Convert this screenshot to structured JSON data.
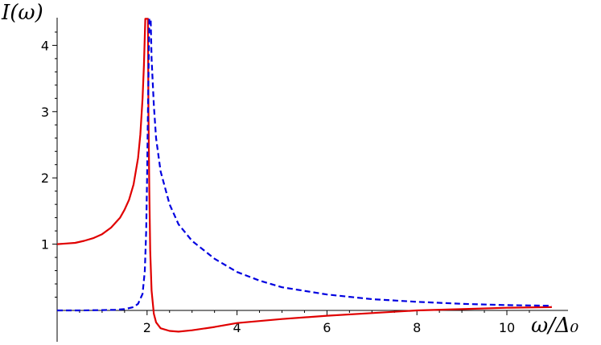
{
  "chart_data": {
    "type": "line",
    "ylabel": "I(ω)",
    "xlabel": "ω/Δ₀",
    "xlim": [
      0,
      11
    ],
    "ylim": [
      -0.5,
      4.4
    ],
    "grid": false,
    "legend": "none",
    "x_ticks": [
      2,
      4,
      6,
      8,
      10
    ],
    "y_ticks": [
      1,
      2,
      3,
      4
    ],
    "series": [
      {
        "style": "solid",
        "color": "#e00000",
        "points": [
          [
            0.0,
            1.0
          ],
          [
            0.2,
            1.01
          ],
          [
            0.4,
            1.02
          ],
          [
            0.6,
            1.05
          ],
          [
            0.8,
            1.09
          ],
          [
            1.0,
            1.15
          ],
          [
            1.2,
            1.25
          ],
          [
            1.4,
            1.4
          ],
          [
            1.5,
            1.52
          ],
          [
            1.6,
            1.67
          ],
          [
            1.7,
            1.9
          ],
          [
            1.8,
            2.3
          ],
          [
            1.85,
            2.65
          ],
          [
            1.9,
            3.2
          ],
          [
            1.93,
            3.7
          ],
          [
            1.96,
            4.4
          ],
          [
            2.02,
            4.4
          ],
          [
            2.03,
            3.0
          ],
          [
            2.05,
            1.8
          ],
          [
            2.07,
            0.9
          ],
          [
            2.1,
            0.3
          ],
          [
            2.15,
            -0.05
          ],
          [
            2.2,
            -0.18
          ],
          [
            2.3,
            -0.27
          ],
          [
            2.5,
            -0.31
          ],
          [
            2.7,
            -0.32
          ],
          [
            3.0,
            -0.3
          ],
          [
            3.5,
            -0.25
          ],
          [
            4.0,
            -0.19
          ],
          [
            5.0,
            -0.13
          ],
          [
            6.0,
            -0.08
          ],
          [
            7.0,
            -0.04
          ],
          [
            8.0,
            0.0
          ],
          [
            9.0,
            0.02
          ],
          [
            10.0,
            0.04
          ],
          [
            11.0,
            0.05
          ]
        ]
      },
      {
        "style": "dashed",
        "color": "#0000e0",
        "points": [
          [
            0.0,
            0.0
          ],
          [
            0.5,
            0.0
          ],
          [
            1.0,
            0.005
          ],
          [
            1.3,
            0.01
          ],
          [
            1.5,
            0.02
          ],
          [
            1.7,
            0.05
          ],
          [
            1.8,
            0.1
          ],
          [
            1.9,
            0.25
          ],
          [
            1.95,
            0.6
          ],
          [
            1.98,
            1.2
          ],
          [
            2.0,
            2.0
          ],
          [
            2.02,
            3.0
          ],
          [
            2.05,
            4.4
          ],
          [
            2.08,
            4.4
          ],
          [
            2.1,
            3.8
          ],
          [
            2.15,
            3.1
          ],
          [
            2.2,
            2.6
          ],
          [
            2.3,
            2.1
          ],
          [
            2.5,
            1.6
          ],
          [
            2.7,
            1.3
          ],
          [
            3.0,
            1.05
          ],
          [
            3.5,
            0.78
          ],
          [
            4.0,
            0.58
          ],
          [
            4.5,
            0.45
          ],
          [
            5.0,
            0.35
          ],
          [
            6.0,
            0.24
          ],
          [
            7.0,
            0.17
          ],
          [
            8.0,
            0.13
          ],
          [
            9.0,
            0.1
          ],
          [
            10.0,
            0.08
          ],
          [
            11.0,
            0.07
          ]
        ]
      }
    ]
  }
}
